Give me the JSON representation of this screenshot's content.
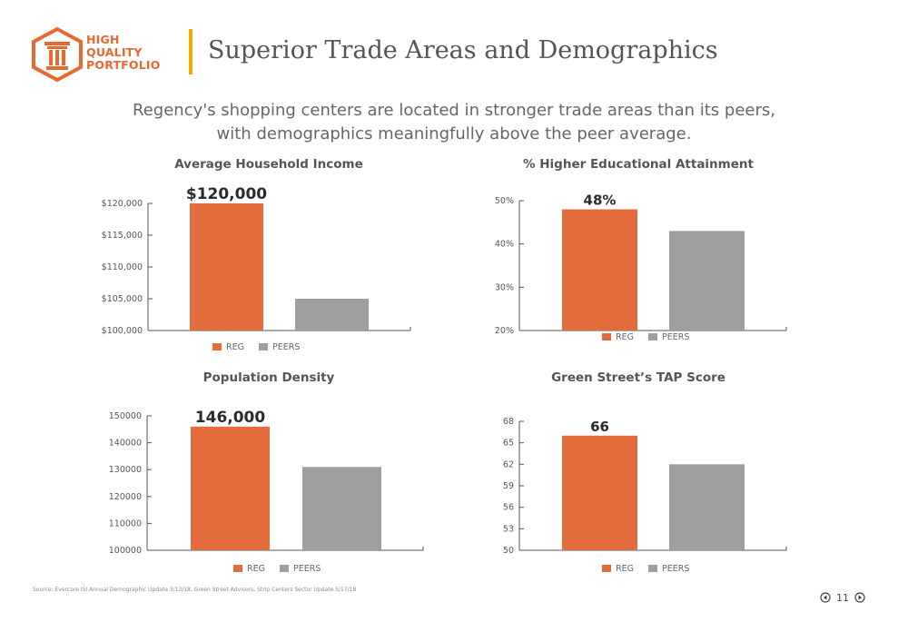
{
  "header": {
    "logo_lines": [
      "HIGH",
      "QUALITY",
      "PORTFOLIO"
    ],
    "title": "Superior Trade Areas and Demographics",
    "subtitle_line1": "Regency's shopping centers are located in stronger trade areas than its peers,",
    "subtitle_line2": "with demographics meaningfully above the peer average."
  },
  "colors": {
    "accent": "#e8692f",
    "bar_reg": "#e26c3c",
    "bar_peers": "#a09f9f",
    "title_bar": "#f2a900",
    "text": "#555555"
  },
  "legend": [
    "REG",
    "PEERS"
  ],
  "chart_data": [
    {
      "type": "bar",
      "title": "Average Household Income",
      "categories": [
        "REG",
        "PEERS"
      ],
      "values": [
        120000,
        105000
      ],
      "ylim": [
        100000,
        120000
      ],
      "yticks": [
        100000,
        105000,
        110000,
        115000,
        120000
      ],
      "ytick_labels": [
        "$100,000",
        "$105,000",
        "$110,000",
        "$115,000",
        "$120,000"
      ],
      "data_label": "$120,000",
      "legend_position": "bottom"
    },
    {
      "type": "bar",
      "title": "% Higher Educational Attainment",
      "categories": [
        "REG",
        "PEERS"
      ],
      "values": [
        48,
        43
      ],
      "ylim": [
        20,
        50
      ],
      "yticks": [
        20,
        30,
        40,
        50
      ],
      "ytick_labels": [
        "20%",
        "30%",
        "40%",
        "50%"
      ],
      "data_label": "48%",
      "legend_position": "bottom"
    },
    {
      "type": "bar",
      "title": "Population Density",
      "categories": [
        "REG",
        "PEERS"
      ],
      "values": [
        146000,
        131000
      ],
      "ylim": [
        100000,
        150000
      ],
      "yticks": [
        100000,
        110000,
        120000,
        130000,
        140000,
        150000
      ],
      "ytick_labels": [
        "100000",
        "110000",
        "120000",
        "130000",
        "140000",
        "150000"
      ],
      "data_label": "146,000",
      "legend_position": "bottom"
    },
    {
      "type": "bar",
      "title": "Green Street’s TAP Score",
      "categories": [
        "REG",
        "PEERS"
      ],
      "values": [
        66,
        62
      ],
      "ylim": [
        50,
        68
      ],
      "yticks": [
        50,
        53,
        56,
        59,
        62,
        65,
        68
      ],
      "ytick_labels": [
        "50",
        "53",
        "56",
        "59",
        "62",
        "65",
        "68"
      ],
      "data_label": "66",
      "legend_position": "bottom"
    }
  ],
  "footer": {
    "source": "Source: Evercore ISI Annual Demographic Update 3/13/18, Green Street Advisors, Strip Centers Sector Update 5/17/18",
    "page_number": "11"
  }
}
